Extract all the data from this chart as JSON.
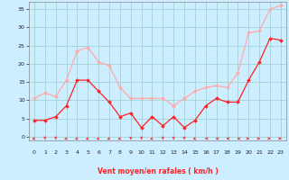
{
  "x": [
    0,
    1,
    2,
    3,
    4,
    5,
    6,
    7,
    8,
    9,
    10,
    11,
    12,
    13,
    14,
    15,
    16,
    17,
    18,
    19,
    20,
    21,
    22,
    23
  ],
  "wind_avg": [
    4.5,
    4.5,
    5.5,
    8.5,
    15.5,
    15.5,
    12.5,
    9.5,
    5.5,
    6.5,
    2.5,
    5.5,
    3,
    5.5,
    2.5,
    4.5,
    8.5,
    10.5,
    9.5,
    9.5,
    15.5,
    20.5,
    27,
    26.5
  ],
  "wind_gust": [
    10.5,
    12,
    11,
    15.5,
    23.5,
    24.5,
    20.5,
    19.5,
    13.5,
    10.5,
    10.5,
    10.5,
    10.5,
    8.5,
    10.5,
    12.5,
    13.5,
    14,
    13.5,
    17.5,
    28.5,
    29,
    35,
    36
  ],
  "color_avg": "#ff2222",
  "color_gust": "#ffaaaa",
  "bg_color": "#cceeff",
  "grid_color": "#99cccc",
  "xlabel": "Vent moyen/en rafales ( km/h )",
  "xlabel_color": "#ff2222",
  "yticks": [
    0,
    5,
    10,
    15,
    20,
    25,
    30,
    35
  ],
  "ylim": [
    -1,
    37
  ],
  "xlim": [
    -0.5,
    23.5
  ],
  "arrow_angles": [
    225,
    270,
    270,
    225,
    225,
    225,
    225,
    225,
    225,
    270,
    270,
    225,
    270,
    270,
    270,
    225,
    180,
    180,
    180,
    180,
    0,
    0,
    0,
    0
  ]
}
